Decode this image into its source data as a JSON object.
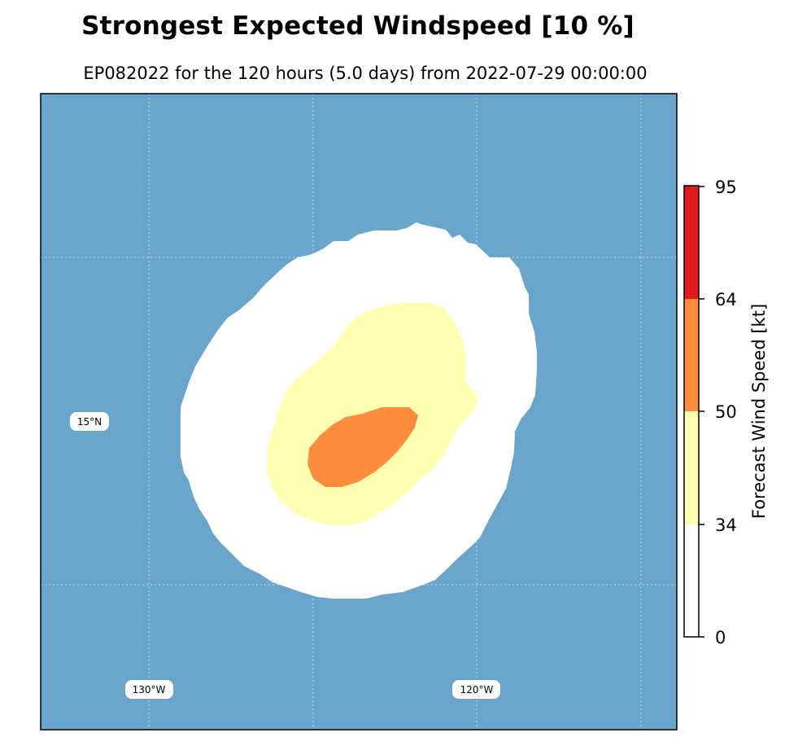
{
  "title": "Strongest Expected Windspeed [10 %]",
  "subtitle": "EP082022 for the 120 hours (5.0 days) from 2022-07-29 00:00:00",
  "map": {
    "ocean_color": "#6aa6cc",
    "gridline_labels": {
      "lat": [
        "15°N"
      ],
      "lon": [
        "130°W",
        "120°W"
      ]
    },
    "regions": [
      {
        "name": "34 kt",
        "color": "#ffffff"
      },
      {
        "name": "34-50 kt",
        "color": "#ffffb2"
      },
      {
        "name": "50-64 kt",
        "color": "#fd8d3c"
      }
    ]
  },
  "colorbar": {
    "label": "Forecast Wind Speed [kt]",
    "ticks": [
      "95",
      "64",
      "50",
      "34",
      "0"
    ],
    "bins": [
      {
        "from": 0,
        "to": 34,
        "color": "#ffffff"
      },
      {
        "from": 34,
        "to": 50,
        "color": "#ffffb2"
      },
      {
        "from": 50,
        "to": 64,
        "color": "#fd8d3c"
      },
      {
        "from": 64,
        "to": 95,
        "color": "#e31a1c"
      }
    ]
  }
}
